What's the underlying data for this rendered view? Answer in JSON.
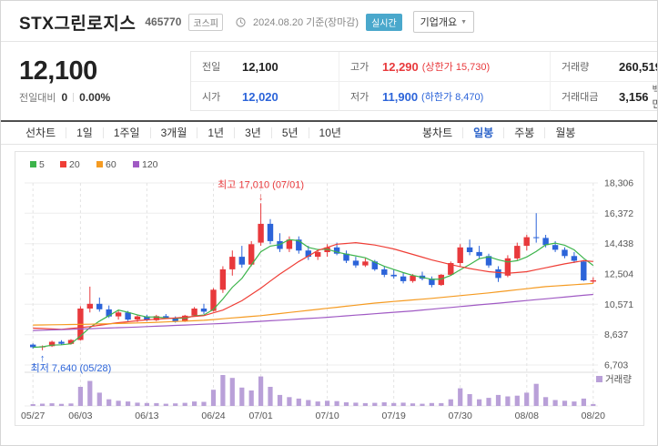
{
  "colors": {
    "up": "#e8393c",
    "down": "#2c64d9",
    "volume_bar": "#b9a0d8",
    "realtime_badge": "#4aa8cc",
    "tab_selected": "#2a62c9"
  },
  "header": {
    "title": "STX그린로지스",
    "code": "465770",
    "market_badge": "코스피",
    "date_text": "2024.08.20 기준(장마감)",
    "realtime_badge": "실시간",
    "company_overview": "기업개요"
  },
  "price": {
    "current": "12,100",
    "change_label": "전일대비",
    "change_value": "0",
    "change_percent": "0.00%",
    "table": {
      "rows": [
        [
          {
            "name": "prev-close",
            "label": "전일",
            "value": "12,100",
            "color": "black"
          },
          {
            "name": "high",
            "label": "고가",
            "value": "12,290",
            "extra": "(상한가 15,730)",
            "color": "red"
          },
          {
            "name": "volume",
            "label": "거래량",
            "value": "260,519",
            "color": "black"
          }
        ],
        [
          {
            "name": "open",
            "label": "시가",
            "value": "12,020",
            "color": "blue"
          },
          {
            "name": "low",
            "label": "저가",
            "value": "11,900",
            "extra": "(하한가 8,470)",
            "color": "blue"
          },
          {
            "name": "trade-value",
            "label": "거래대금",
            "value": "3,156",
            "unit": "백만",
            "color": "black"
          }
        ]
      ]
    }
  },
  "toolbar": {
    "period_tabs": [
      {
        "label": "선차트",
        "name": "line-chart"
      },
      {
        "label": "1일",
        "name": "1day"
      },
      {
        "label": "1주일",
        "name": "1week"
      },
      {
        "label": "3개월",
        "name": "3month"
      },
      {
        "label": "1년",
        "name": "1year"
      },
      {
        "label": "3년",
        "name": "3year"
      },
      {
        "label": "5년",
        "name": "5year"
      },
      {
        "label": "10년",
        "name": "10year"
      }
    ],
    "type_tabs": [
      {
        "label": "봉차트",
        "name": "candle-chart-group",
        "header": true
      },
      {
        "label": "일봉",
        "name": "daily-candle",
        "selected": true
      },
      {
        "label": "주봉",
        "name": "weekly-candle"
      },
      {
        "label": "월봉",
        "name": "monthly-candle"
      }
    ]
  },
  "chart_data": {
    "type": "candlestick",
    "y_ticks": [
      18306,
      16372,
      14438,
      12504,
      10571,
      8637,
      6703
    ],
    "x_ticks": [
      [
        0,
        "05/27"
      ],
      [
        5,
        "06/03"
      ],
      [
        12,
        "06/13"
      ],
      [
        19,
        "06/24"
      ],
      [
        24,
        "07/01"
      ],
      [
        31,
        "07/10"
      ],
      [
        38,
        "07/19"
      ],
      [
        45,
        "07/30"
      ],
      [
        52,
        "08/08"
      ],
      [
        59,
        "08/20"
      ]
    ],
    "volume_legend_label": "거래량",
    "annotations": {
      "high": {
        "text": "최고 17,010 (07/01)",
        "index": 24,
        "value": 17010
      },
      "low": {
        "text": "최저 7,640 (05/28)",
        "index": 1,
        "value": 7640
      }
    },
    "ma_series": [
      {
        "period": "5",
        "color": "#3cb44b",
        "computed": true
      },
      {
        "period": "20",
        "color": "#ef3e36",
        "points": [
          [
            0,
            9050
          ],
          [
            3,
            8980
          ],
          [
            6,
            9150
          ],
          [
            9,
            9400
          ],
          [
            12,
            9580
          ],
          [
            15,
            9700
          ],
          [
            18,
            9850
          ],
          [
            20,
            10200
          ],
          [
            22,
            10800
          ],
          [
            24,
            11600
          ],
          [
            26,
            12500
          ],
          [
            28,
            13300
          ],
          [
            30,
            14000
          ],
          [
            32,
            14400
          ],
          [
            34,
            14500
          ],
          [
            36,
            14350
          ],
          [
            38,
            14100
          ],
          [
            40,
            13750
          ],
          [
            42,
            13400
          ],
          [
            44,
            13100
          ],
          [
            46,
            12850
          ],
          [
            48,
            12650
          ],
          [
            50,
            12550
          ],
          [
            52,
            12650
          ],
          [
            54,
            12900
          ],
          [
            56,
            13150
          ],
          [
            58,
            13350
          ],
          [
            59,
            13300
          ]
        ]
      },
      {
        "period": "60",
        "color": "#f59b22",
        "points": [
          [
            0,
            9250
          ],
          [
            6,
            9300
          ],
          [
            12,
            9400
          ],
          [
            18,
            9550
          ],
          [
            24,
            9850
          ],
          [
            30,
            10250
          ],
          [
            36,
            10650
          ],
          [
            42,
            10950
          ],
          [
            48,
            11300
          ],
          [
            54,
            11700
          ],
          [
            59,
            11900
          ]
        ]
      },
      {
        "period": "120",
        "color": "#a05ac4",
        "points": [
          [
            0,
            8900
          ],
          [
            10,
            9100
          ],
          [
            20,
            9350
          ],
          [
            30,
            9700
          ],
          [
            40,
            10150
          ],
          [
            50,
            10700
          ],
          [
            59,
            11200
          ]
        ]
      }
    ],
    "candles": [
      [
        "05/27",
        8000,
        8080,
        7750,
        7830,
        250
      ],
      [
        "05/28",
        7830,
        7950,
        7640,
        7900,
        310
      ],
      [
        "05/29",
        7900,
        8250,
        7850,
        8180,
        360
      ],
      [
        "05/30",
        8180,
        8280,
        7990,
        8050,
        280
      ],
      [
        "05/31",
        8050,
        8350,
        8000,
        8300,
        330
      ],
      [
        "06/03",
        8300,
        10450,
        8260,
        10300,
        2600
      ],
      [
        "06/04",
        10300,
        11700,
        10050,
        10600,
        3400
      ],
      [
        "06/05",
        10600,
        11000,
        10100,
        10250,
        1800
      ],
      [
        "06/07",
        10250,
        10500,
        9700,
        9800,
        900
      ],
      [
        "06/10",
        9800,
        10200,
        9600,
        10050,
        700
      ],
      [
        "06/11",
        10050,
        10150,
        9500,
        9600,
        600
      ],
      [
        "06/12",
        9600,
        9900,
        9450,
        9800,
        450
      ],
      [
        "06/13",
        9800,
        9900,
        9500,
        9560,
        400
      ],
      [
        "06/14",
        9560,
        9900,
        9500,
        9820,
        380
      ],
      [
        "06/17",
        9820,
        9950,
        9650,
        9700,
        300
      ],
      [
        "06/18",
        9700,
        9800,
        9400,
        9480,
        350
      ],
      [
        "06/19",
        9480,
        9900,
        9450,
        9850,
        420
      ],
      [
        "06/20",
        9850,
        10400,
        9800,
        10300,
        600
      ],
      [
        "06/21",
        10300,
        10600,
        9950,
        10100,
        550
      ],
      [
        "06/24",
        10150,
        11600,
        10100,
        11500,
        2200
      ],
      [
        "06/25",
        11500,
        13000,
        11300,
        12800,
        4200
      ],
      [
        "06/26",
        12800,
        14000,
        12400,
        13600,
        3800
      ],
      [
        "06/27",
        13600,
        14300,
        12900,
        13100,
        2500
      ],
      [
        "06/28",
        13100,
        14600,
        13000,
        14400,
        2100
      ],
      [
        "07/01",
        14500,
        17010,
        14300,
        15700,
        4000
      ],
      [
        "07/02",
        15700,
        16000,
        14400,
        14600,
        2600
      ],
      [
        "07/03",
        14600,
        15100,
        13900,
        14100,
        1500
      ],
      [
        "07/04",
        14100,
        14900,
        13900,
        14700,
        1200
      ],
      [
        "07/05",
        14700,
        14900,
        13800,
        14000,
        1000
      ],
      [
        "07/08",
        14000,
        14300,
        13400,
        13600,
        800
      ],
      [
        "07/09",
        13600,
        14100,
        13400,
        13900,
        600
      ],
      [
        "07/10",
        13900,
        14400,
        13600,
        14200,
        700
      ],
      [
        "07/11",
        14200,
        14500,
        13700,
        13800,
        650
      ],
      [
        "07/12",
        13800,
        14000,
        13200,
        13350,
        500
      ],
      [
        "07/15",
        13350,
        13600,
        12900,
        13050,
        450
      ],
      [
        "07/16",
        13050,
        13500,
        12950,
        13300,
        380
      ],
      [
        "07/17",
        13300,
        13400,
        12700,
        12800,
        420
      ],
      [
        "07/18",
        12800,
        13000,
        12300,
        12450,
        500
      ],
      [
        "07/19",
        12450,
        12800,
        12200,
        12350,
        400
      ],
      [
        "07/22",
        12350,
        12600,
        11900,
        12050,
        450
      ],
      [
        "07/23",
        12050,
        12500,
        11950,
        12400,
        350
      ],
      [
        "07/24",
        12400,
        12650,
        12100,
        12200,
        300
      ],
      [
        "07/25",
        12200,
        12350,
        11650,
        11800,
        400
      ],
      [
        "07/26",
        11800,
        12500,
        11750,
        12450,
        380
      ],
      [
        "07/29",
        12450,
        13300,
        12400,
        13200,
        900
      ],
      [
        "07/30",
        13200,
        14400,
        13000,
        14200,
        2400
      ],
      [
        "07/31",
        14200,
        14700,
        13700,
        13900,
        1600
      ],
      [
        "08/01",
        13900,
        14300,
        13500,
        13650,
        900
      ],
      [
        "08/02",
        13650,
        13800,
        12900,
        13050,
        1100
      ],
      [
        "08/05",
        12800,
        13000,
        12000,
        12250,
        1500
      ],
      [
        "08/06",
        12400,
        13700,
        12300,
        13500,
        1300
      ],
      [
        "08/07",
        13500,
        14500,
        13400,
        14300,
        1400
      ],
      [
        "08/08",
        14300,
        15000,
        14000,
        14850,
        1800
      ],
      [
        "08/09",
        14850,
        16380,
        14500,
        14800,
        3000
      ],
      [
        "08/12",
        14800,
        15000,
        14200,
        14350,
        1200
      ],
      [
        "08/13",
        14350,
        14600,
        13900,
        14050,
        800
      ],
      [
        "08/14",
        14050,
        14200,
        13500,
        13650,
        700
      ],
      [
        "08/16",
        13650,
        13900,
        13200,
        13350,
        600
      ],
      [
        "08/19",
        13300,
        13400,
        12050,
        12100,
        1000
      ],
      [
        "08/20",
        12020,
        12290,
        11900,
        12100,
        261
      ]
    ]
  }
}
